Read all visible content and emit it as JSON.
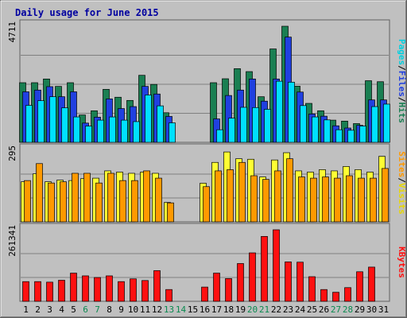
{
  "chart_data": {
    "type": "bar",
    "title": "Daily usage for June 2015",
    "days": [
      1,
      2,
      3,
      4,
      5,
      6,
      7,
      8,
      9,
      10,
      11,
      12,
      13,
      14,
      15,
      16,
      17,
      18,
      19,
      20,
      21,
      22,
      23,
      24,
      25,
      26,
      27,
      28,
      29,
      30,
      31
    ],
    "day_labels": [
      "1",
      "2",
      "3",
      "4",
      "5",
      "6",
      "7",
      "8",
      "9",
      "10",
      "11",
      "12",
      "13",
      "14",
      "15",
      "16",
      "17",
      "18",
      "19",
      "20",
      "21",
      "22",
      "23",
      "24",
      "25",
      "26",
      "27",
      "28",
      "29",
      "30",
      "31"
    ],
    "weekend_days": [
      6,
      7,
      13,
      14,
      20,
      21,
      27,
      28
    ],
    "panels": [
      {
        "id": "hits",
        "ymax": 4711,
        "ymax_label": "4711",
        "series_labels": [
          "Pages",
          "Files",
          "Hits"
        ],
        "series": [
          {
            "name": "Hits",
            "color": "#1a7f52",
            "values": [
              2420,
              2420,
              2570,
              2270,
              2420,
              1110,
              1280,
              2150,
              1830,
              1700,
              2720,
              2350,
              1200,
              0,
              0,
              0,
              2420,
              2580,
              2990,
              2870,
              1850,
              3790,
              4711,
              2280,
              1580,
              1280,
              900,
              860,
              760,
              2500,
              2460
            ]
          },
          {
            "name": "Files",
            "color": "#2040e0",
            "values": [
              2050,
              2120,
              2260,
              1850,
              2050,
              780,
              1020,
              1760,
              1370,
              1450,
              2270,
              1960,
              1050,
              0,
              0,
              0,
              950,
              1900,
              2120,
              2570,
              1670,
              2570,
              4270,
              2040,
              1150,
              1060,
              670,
              580,
              690,
              1720,
              1720
            ]
          },
          {
            "name": "Pages",
            "color": "#00e0ff",
            "values": [
              1500,
              1690,
              1850,
              1400,
              1030,
              660,
              900,
              1030,
              900,
              840,
              1920,
              1480,
              790,
              0,
              0,
              0,
              510,
              980,
              1420,
              1410,
              1340,
              2480,
              2440,
              1490,
              1030,
              910,
              510,
              490,
              660,
              1450,
              1550
            ]
          }
        ]
      },
      {
        "id": "visits",
        "ymax": 295,
        "ymax_label": "295",
        "series_labels": [
          "Sites",
          "Visits"
        ],
        "series": [
          {
            "name": "Visits",
            "color": "#ffff33",
            "values": [
              165,
              198,
              165,
              172,
              170,
              178,
              180,
              210,
              205,
              200,
              205,
              200,
              80,
              0,
              0,
              159,
              245,
              288,
              260,
              258,
              185,
              255,
              285,
              210,
              205,
              215,
              210,
              228,
              215,
              205,
              270
            ]
          },
          {
            "name": "Sites",
            "color": "#ff9900",
            "values": [
              170,
              240,
              160,
              165,
              200,
              200,
              160,
              200,
              170,
              170,
              210,
              180,
              78,
              0,
              0,
              145,
              210,
              215,
              245,
              190,
              175,
              210,
              260,
              185,
              180,
              185,
              180,
              190,
              180,
              180,
              220
            ]
          }
        ]
      },
      {
        "id": "kbytes",
        "ymax": 261341,
        "ymax_label": "261341",
        "series_labels": [
          "KBytes"
        ],
        "series": [
          {
            "name": "KBytes",
            "color": "#ff1010",
            "values": [
              72000,
              72000,
              70000,
              77000,
              103000,
              93000,
              87000,
              93000,
              72000,
              82000,
              76000,
              112000,
              43000,
              0,
              0,
              52000,
              103000,
              83000,
              138000,
              177000,
              237000,
              261341,
              144000,
              143000,
              90000,
              43000,
              33000,
              50000,
              108000,
              125000,
              0
            ]
          }
        ]
      }
    ]
  }
}
